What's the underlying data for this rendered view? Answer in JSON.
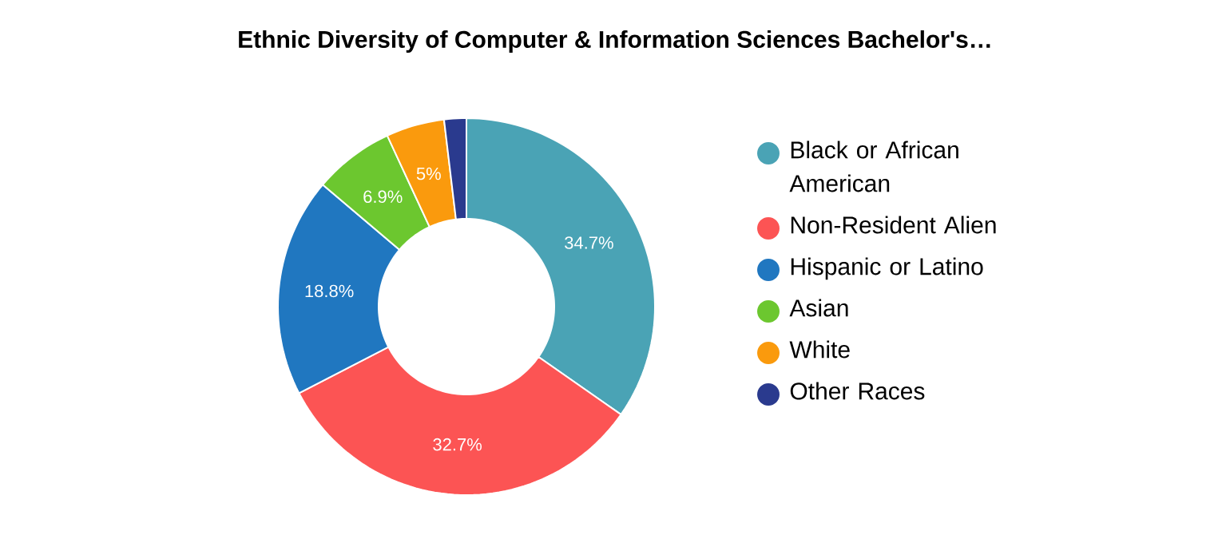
{
  "chart_data": {
    "type": "donut",
    "title": "Ethnic Diversity of Computer & Information Sciences Bachelor's…",
    "categories": [
      "Black or African American",
      "Non-Resident Alien",
      "Hispanic or Latino",
      "Asian",
      "White",
      "Other Races"
    ],
    "values": [
      34.7,
      32.7,
      18.8,
      6.9,
      5,
      1.9
    ],
    "colors": [
      "#4aa3b5",
      "#fc5454",
      "#2077c0",
      "#6cc72f",
      "#fa9a0d",
      "#2a3a8e"
    ],
    "value_labels": [
      "34.7%",
      "32.7%",
      "18.8%",
      "6.9%",
      "5%",
      null
    ],
    "legend": "right"
  }
}
